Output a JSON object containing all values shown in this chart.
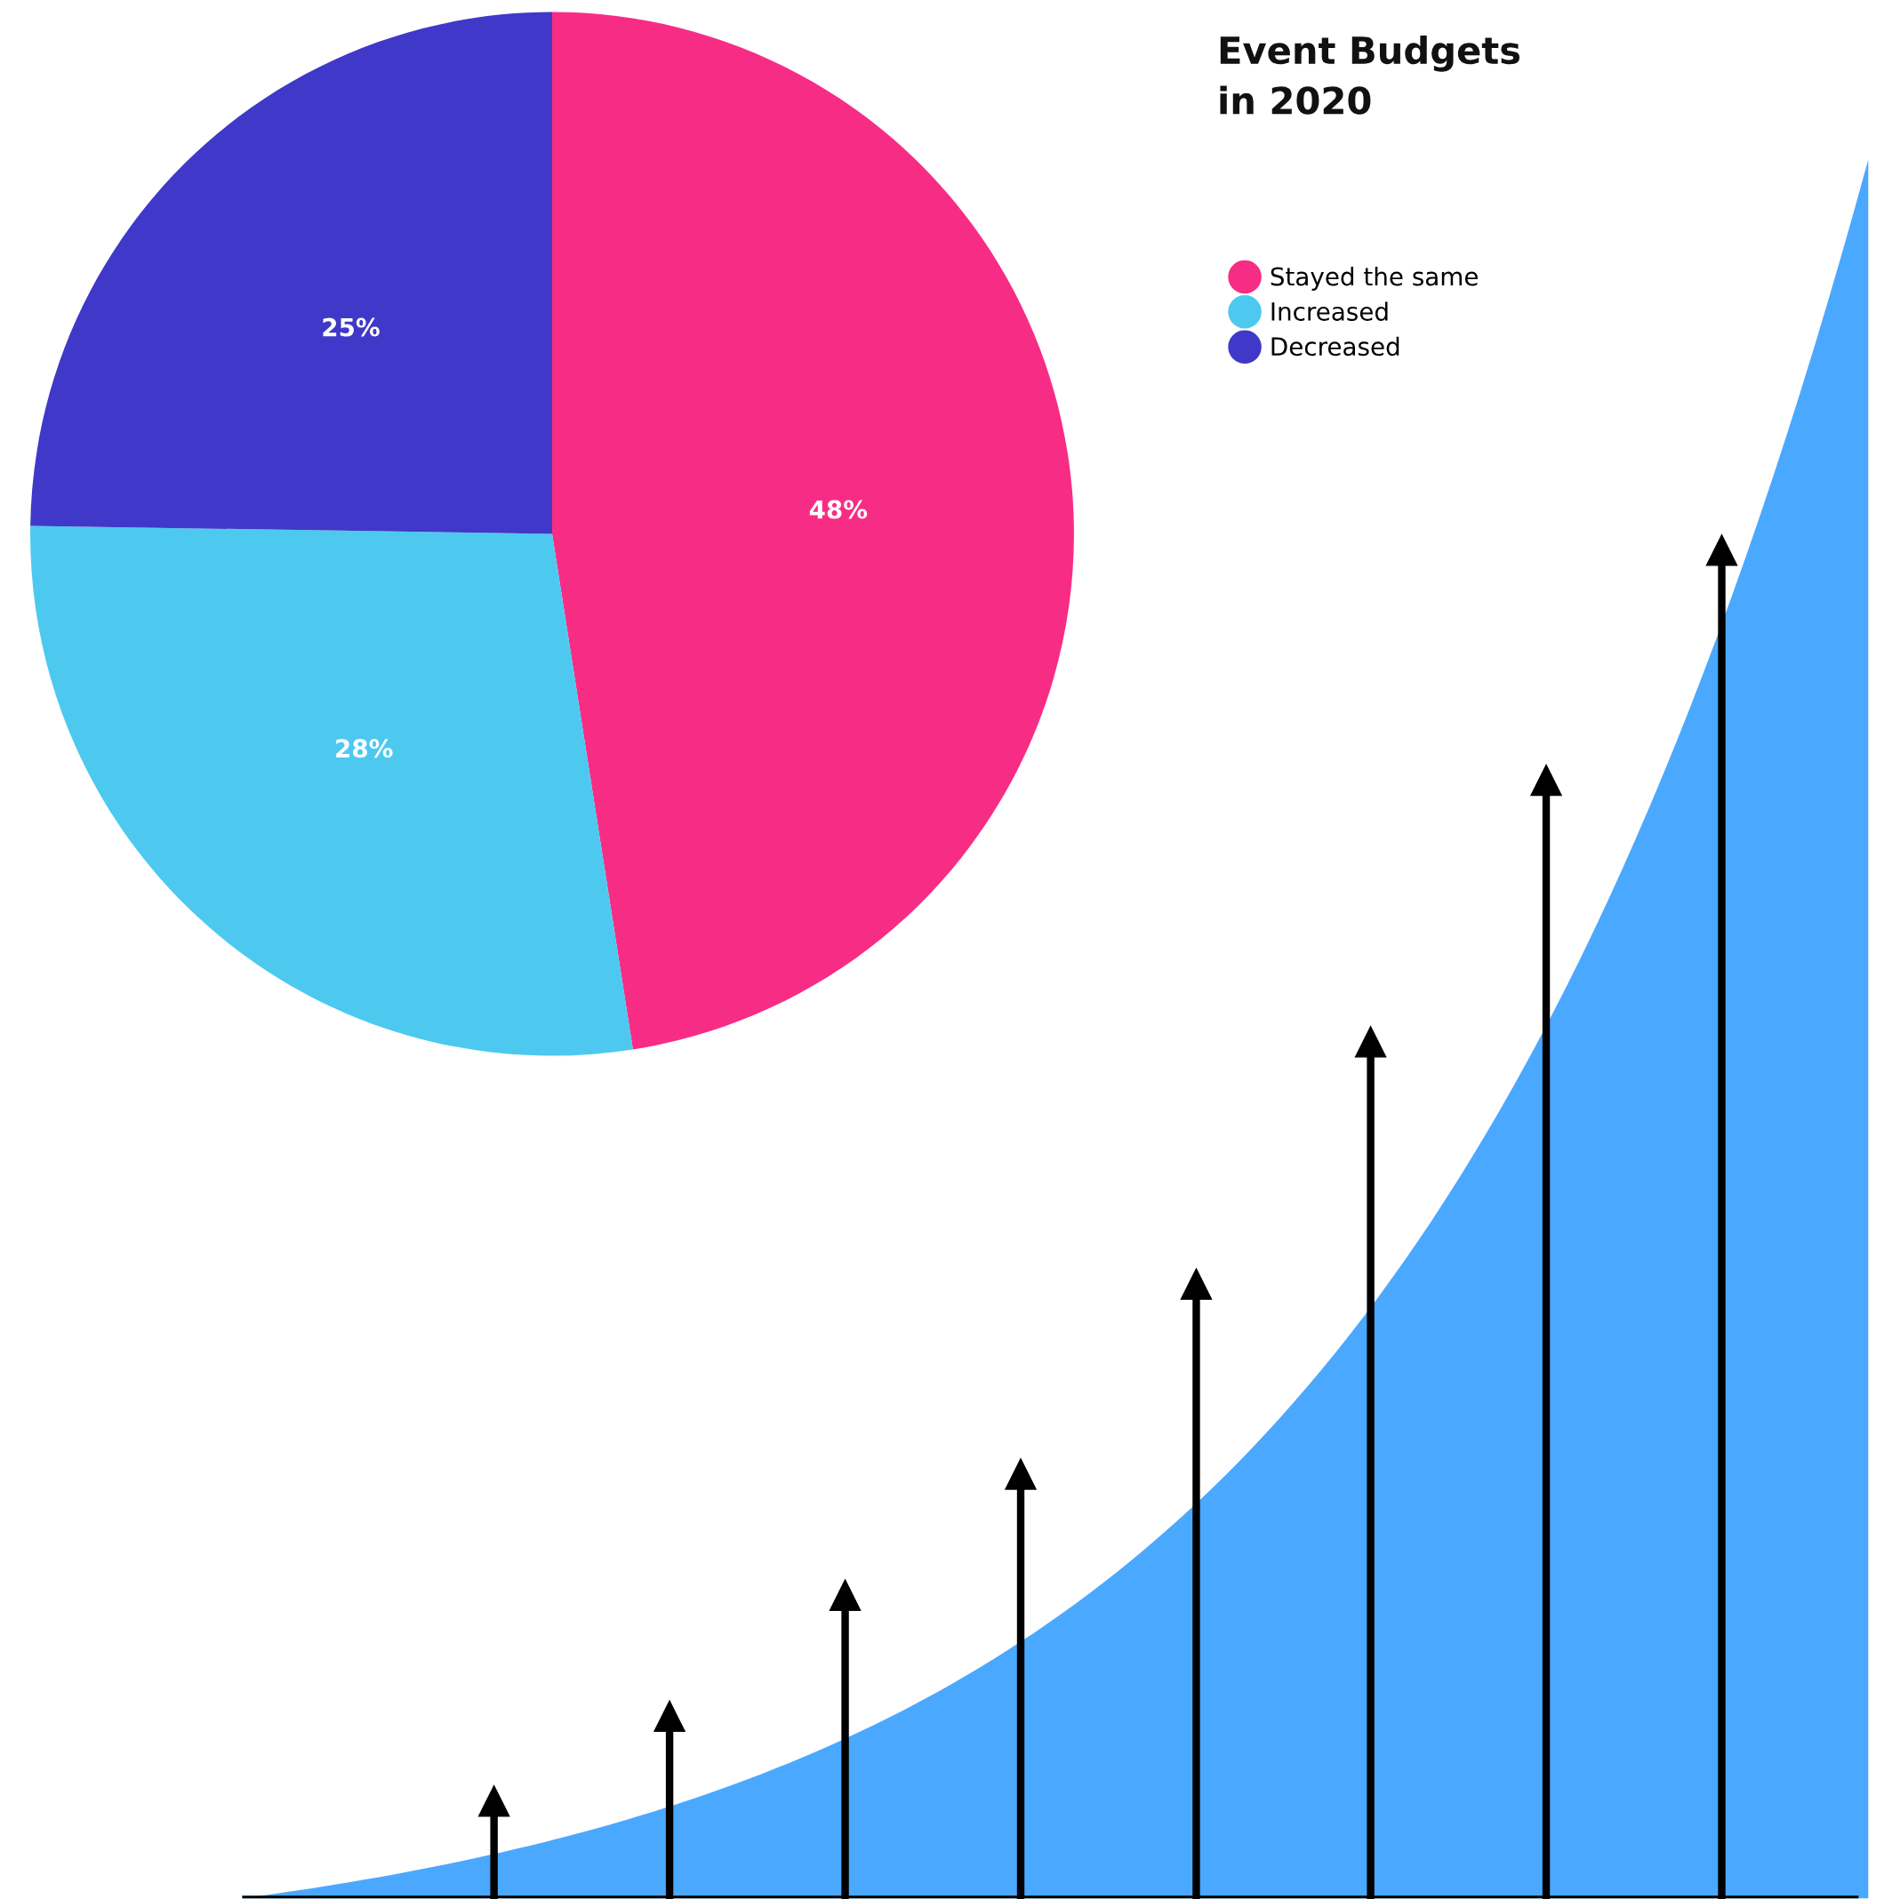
{
  "chart_data": {
    "type": "pie",
    "title": "Event Budgets\nin 2020",
    "categories": [
      "Stayed the same",
      "Increased",
      "Decreased"
    ],
    "values": [
      48,
      28,
      25
    ],
    "colors": [
      "#f72d85",
      "#4dc9f0",
      "#4038c8"
    ],
    "value_labels": [
      "48%",
      "28%",
      "25%"
    ],
    "legend": "top right"
  }
}
